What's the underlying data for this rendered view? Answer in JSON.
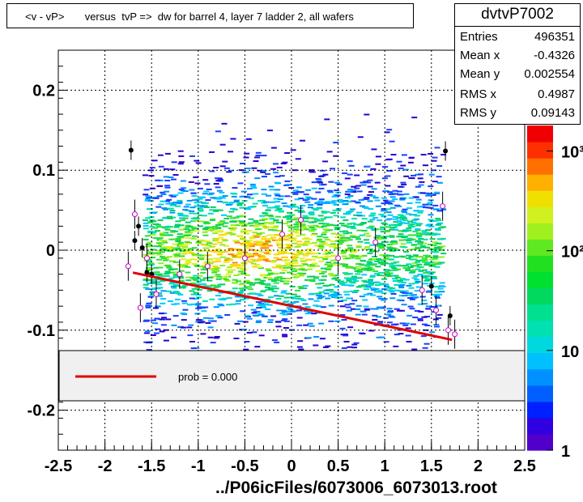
{
  "title": "<v - vP>       versus  tvP =>  dw for barrel 4, layer 7 ladder 2, all wafers",
  "stats": {
    "name": "dvtvP7002",
    "rows": [
      {
        "key": "Entries",
        "value": "496351"
      },
      {
        "key": "Mean x",
        "value": "-0.4326"
      },
      {
        "key": "Mean y",
        "value": "0.002554"
      },
      {
        "key": "RMS x",
        "value": "0.4987"
      },
      {
        "key": "RMS y",
        "value": "0.09143"
      }
    ]
  },
  "legend": {
    "label": "prob = 0.000",
    "line_color": "#e00000"
  },
  "footer": "../P06icFiles/6073006_6073013.root",
  "colors": {
    "fit_line": "#e00000",
    "profile_open": "#cc00cc",
    "profile_filled": "#000000"
  },
  "chart_data": {
    "type": "heatmap",
    "xlim": [
      -2.5,
      2.5
    ],
    "ylim": [
      -0.25,
      0.25
    ],
    "x_ticks": [
      "-2.5",
      "-2",
      "-1.5",
      "-1",
      "-0.5",
      "0",
      "0.5",
      "1",
      "1.5",
      "2",
      "2.5"
    ],
    "y_ticks": [
      "-0.2",
      "-0.1",
      "0",
      "0.1",
      "0.2"
    ],
    "colorbar_ticks": [
      "1",
      "10",
      "10²",
      "10³"
    ],
    "colorbar_scale": "log",
    "grid": true,
    "fit_line": {
      "x": [
        -1.7,
        1.72
      ],
      "y": [
        -0.028,
        -0.112
      ]
    },
    "profile_filled": [
      {
        "x": -1.72,
        "y": 0.125
      },
      {
        "x": -1.68,
        "y": 0.012
      },
      {
        "x": -1.64,
        "y": 0.03
      },
      {
        "x": -1.6,
        "y": 0.003
      },
      {
        "x": -1.55,
        "y": -0.028
      },
      {
        "x": -1.5,
        "y": -0.03
      },
      {
        "x": 1.5,
        "y": -0.045
      },
      {
        "x": 1.65,
        "y": 0.124
      },
      {
        "x": 1.7,
        "y": -0.082
      }
    ],
    "profile_open": [
      {
        "x": -1.75,
        "y": -0.02
      },
      {
        "x": -1.68,
        "y": 0.045
      },
      {
        "x": -1.62,
        "y": -0.072
      },
      {
        "x": -1.55,
        "y": -0.01
      },
      {
        "x": -1.45,
        "y": -0.055
      },
      {
        "x": -1.2,
        "y": -0.03
      },
      {
        "x": -0.9,
        "y": -0.02
      },
      {
        "x": -0.5,
        "y": -0.01
      },
      {
        "x": -0.1,
        "y": 0.02
      },
      {
        "x": 0.1,
        "y": 0.038
      },
      {
        "x": 0.5,
        "y": -0.01
      },
      {
        "x": 0.9,
        "y": 0.01
      },
      {
        "x": 1.4,
        "y": -0.05
      },
      {
        "x": 1.55,
        "y": -0.075
      },
      {
        "x": 1.62,
        "y": 0.055
      },
      {
        "x": 1.68,
        "y": -0.1
      },
      {
        "x": 1.75,
        "y": -0.105
      }
    ]
  }
}
